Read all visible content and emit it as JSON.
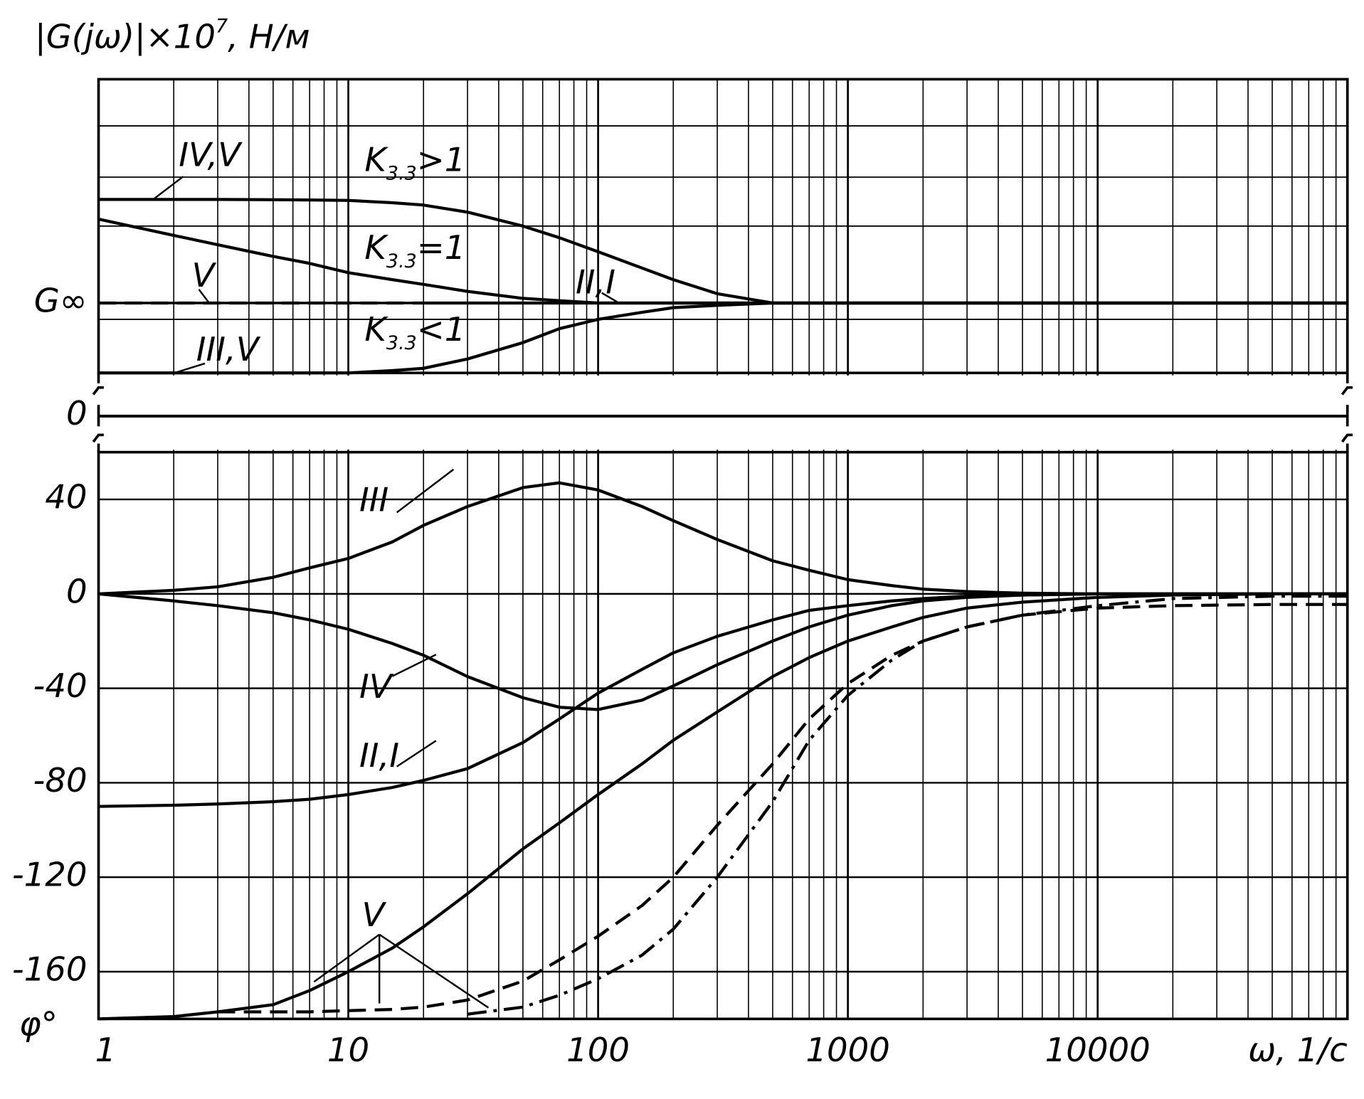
{
  "chart_data": [
    {
      "type": "line",
      "panel": "magnitude",
      "ylabel": {
        "main": "|G(jω)|×10",
        "sup": "7",
        "rest": ", Н/м"
      },
      "xlim": [
        1,
        100000
      ],
      "xscale": "log",
      "ylim": [
        0.7,
        1.96
      ],
      "yticks": [
        {
          "value": 1,
          "label": "G∞"
        }
      ],
      "ygrid": [
        0.93,
        1.33,
        1.54,
        1.76
      ],
      "break_label": "0",
      "x": [
        1,
        2,
        3,
        5,
        7,
        10,
        15,
        20,
        30,
        50,
        70,
        100,
        150,
        200,
        300,
        500,
        700,
        1000,
        1500,
        2000,
        3000,
        5000,
        10000,
        20000,
        50000,
        100000
      ],
      "series": [
        {
          "color": "#000",
          "dash": "solid",
          "values": [
            1.444,
            1.444,
            1.444,
            1.443,
            1.442,
            1.44,
            1.43,
            1.42,
            1.39,
            1.33,
            1.28,
            1.22,
            1.15,
            1.1,
            1.04,
            1.0,
            1,
            1,
            1,
            1,
            1,
            1,
            1,
            1,
            1,
            1
          ]
        },
        {
          "color": "#000",
          "dash": "solid",
          "values": [
            1.36,
            1.29,
            1.25,
            1.2,
            1.17,
            1.13,
            1.1,
            1.08,
            1.05,
            1.02,
            1.01,
            1.0,
            1,
            1,
            1,
            1,
            1,
            1,
            1,
            1,
            1,
            1,
            1,
            1,
            1,
            1
          ]
        },
        {
          "color": "#000",
          "dash": "solid",
          "values": [
            0.7,
            0.7,
            0.7,
            0.7,
            0.7,
            0.7,
            0.71,
            0.72,
            0.76,
            0.83,
            0.89,
            0.93,
            0.96,
            0.98,
            0.99,
            1.0,
            1,
            1,
            1,
            1,
            1,
            1,
            1,
            1,
            1,
            1
          ]
        },
        {
          "color": "#000",
          "dash": "dashed",
          "values": [
            1,
            1,
            1,
            1,
            1,
            1,
            1,
            1,
            null,
            null,
            null,
            null,
            null,
            null,
            null,
            null,
            null,
            null,
            null,
            null,
            null,
            null,
            null,
            null,
            null,
            null
          ]
        },
        {
          "color": "#000",
          "dash": "solid",
          "values": [
            null,
            null,
            null,
            null,
            null,
            null,
            null,
            1,
            1,
            1,
            1,
            1,
            1,
            1,
            1,
            1,
            1,
            1,
            1,
            1,
            1,
            1,
            1,
            1,
            1,
            1
          ]
        }
      ],
      "annotations": [
        {
          "text": "IV,V"
        },
        {
          "text": "V"
        },
        {
          "text": "III,V"
        },
        {
          "text": "II,I"
        },
        {
          "text": "K",
          "sub": "3.3",
          "rest": ">1"
        },
        {
          "text": "K",
          "sub": "3.3",
          "rest": "=1"
        },
        {
          "text": "K",
          "sub": "3.3",
          "rest": "<1"
        }
      ]
    },
    {
      "type": "line",
      "panel": "phase",
      "ylabel": "φ°",
      "xlabel": "ω, 1/с",
      "xlim": [
        1,
        100000
      ],
      "xscale": "log",
      "xticks": [
        1,
        10,
        100,
        1000,
        10000
      ],
      "ylim": [
        -180,
        60
      ],
      "yticks": [
        40,
        0,
        -40,
        -80,
        -120,
        -160
      ],
      "x": [
        1,
        2,
        3,
        5,
        7,
        10,
        15,
        20,
        30,
        50,
        70,
        100,
        150,
        200,
        300,
        500,
        700,
        1000,
        1500,
        2000,
        3000,
        5000,
        10000,
        20000,
        50000,
        100000
      ],
      "series": [
        {
          "color": "#000",
          "dash": "solid",
          "values": [
            0,
            1.5,
            3,
            7,
            11,
            15,
            22,
            29,
            37,
            45,
            47,
            44,
            37,
            31,
            23,
            14,
            10,
            6,
            3.5,
            2,
            1,
            0.3,
            0,
            0,
            0,
            0
          ]
        },
        {
          "color": "#000",
          "dash": "solid",
          "values": [
            0,
            -3,
            -5,
            -8,
            -11,
            -15,
            -21,
            -26,
            -35,
            -44,
            -48,
            -49,
            -45,
            -39,
            -30,
            -20,
            -14,
            -9,
            -5,
            -3,
            -1.5,
            -0.5,
            0,
            0,
            0,
            0
          ]
        },
        {
          "color": "#000",
          "dash": "solid",
          "values": [
            -90,
            -89.5,
            -89,
            -88,
            -87,
            -85,
            -82,
            -79,
            -74,
            -63,
            -53,
            -42,
            -32,
            -25,
            -18,
            -11,
            -7,
            -5,
            -3,
            -2,
            -1,
            -0.5,
            0,
            0,
            0,
            0
          ]
        },
        {
          "color": "#000",
          "dash": "solid",
          "values": [
            -180,
            -179,
            -177,
            -174,
            -168,
            -160,
            -150,
            -141,
            -127,
            -108,
            -97,
            -85,
            -72,
            -62,
            -50,
            -35,
            -27,
            -20,
            -14,
            -10,
            -6,
            -3.5,
            -1.5,
            -0.5,
            0,
            0
          ]
        },
        {
          "color": "#000",
          "dash": "dashed",
          "values": [
            null,
            null,
            -177,
            -177,
            -177,
            -176.5,
            -176,
            -175,
            -172,
            -164,
            -155,
            -145,
            -132,
            -120,
            -98,
            -72,
            -53,
            -38,
            -26,
            -20,
            -14,
            -9,
            -6,
            -5,
            -4.5,
            -4.5
          ]
        },
        {
          "color": "#000",
          "dash": "dashdot",
          "values": [
            null,
            null,
            null,
            null,
            null,
            null,
            null,
            null,
            -178,
            -175,
            -170,
            -163,
            -153,
            -142,
            -120,
            -88,
            -62,
            -43,
            -28,
            -20,
            -14,
            -9,
            -5,
            -2,
            -1,
            -1
          ]
        }
      ],
      "annotations": [
        {
          "text": "III"
        },
        {
          "text": "IV"
        },
        {
          "text": "II,I"
        },
        {
          "text": "V"
        }
      ]
    }
  ]
}
